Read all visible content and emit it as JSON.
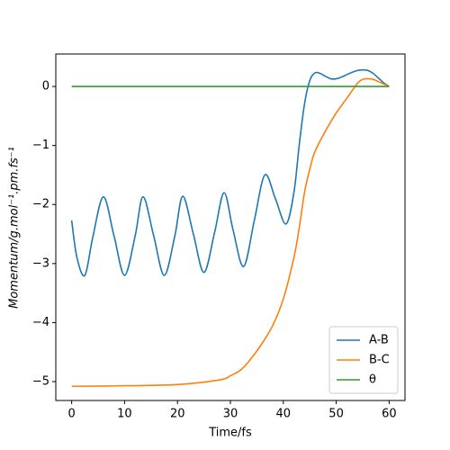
{
  "chart_data": {
    "type": "line",
    "xlabel": "Time/fs",
    "ylabel": "Momentum/g.mol⁻¹.pm.fs⁻¹",
    "xlim": [
      -3,
      63
    ],
    "ylim": [
      -5.32,
      0.55
    ],
    "xticks": [
      0,
      10,
      20,
      30,
      40,
      50,
      60
    ],
    "yticks": [
      {
        "value": -5,
        "label": "−5"
      },
      {
        "value": -4,
        "label": "−4"
      },
      {
        "value": -3,
        "label": "−3"
      },
      {
        "value": -2,
        "label": "−2"
      },
      {
        "value": -1,
        "label": "−1"
      },
      0
    ],
    "legend": "lower right",
    "series": [
      {
        "name": "A-B",
        "color": "#1f77b4",
        "x": [
          0,
          1,
          2.5,
          4,
          6,
          8,
          10,
          12,
          13.5,
          15.5,
          17.5,
          19.5,
          21,
          23,
          25,
          27,
          28.8,
          30.5,
          32.5,
          34.5,
          36.5,
          38.5,
          40.5,
          42,
          43,
          44,
          45,
          46,
          47,
          48,
          49,
          50,
          51,
          52,
          53,
          54,
          55,
          56,
          57,
          58,
          59,
          60
        ],
        "values": [
          -2.27,
          -2.9,
          -3.2,
          -2.55,
          -1.87,
          -2.53,
          -3.2,
          -2.53,
          -1.87,
          -2.53,
          -3.2,
          -2.53,
          -1.86,
          -2.5,
          -3.15,
          -2.48,
          -1.8,
          -2.43,
          -3.05,
          -2.28,
          -1.5,
          -1.9,
          -2.33,
          -1.8,
          -1.0,
          -0.3,
          0.1,
          0.23,
          0.22,
          0.17,
          0.13,
          0.13,
          0.16,
          0.2,
          0.24,
          0.27,
          0.28,
          0.27,
          0.22,
          0.14,
          0.06,
          0
        ]
      },
      {
        "name": "B-C",
        "color": "#ff7f0e",
        "x": [
          0,
          10,
          20,
          28,
          30,
          32,
          34,
          36,
          38,
          40,
          42,
          43,
          44,
          45,
          46,
          48,
          50,
          52,
          54,
          55,
          56,
          57,
          58,
          59,
          60
        ],
        "values": [
          -5.08,
          -5.07,
          -5.05,
          -4.97,
          -4.9,
          -4.8,
          -4.6,
          -4.35,
          -4.05,
          -3.6,
          -2.9,
          -2.4,
          -1.8,
          -1.4,
          -1.1,
          -0.75,
          -0.45,
          -0.2,
          0.05,
          0.12,
          0.13,
          0.12,
          0.08,
          0.04,
          0
        ]
      },
      {
        "name": "θ",
        "color": "#2ca02c",
        "x": [
          0,
          60
        ],
        "values": [
          0,
          0
        ]
      }
    ]
  }
}
